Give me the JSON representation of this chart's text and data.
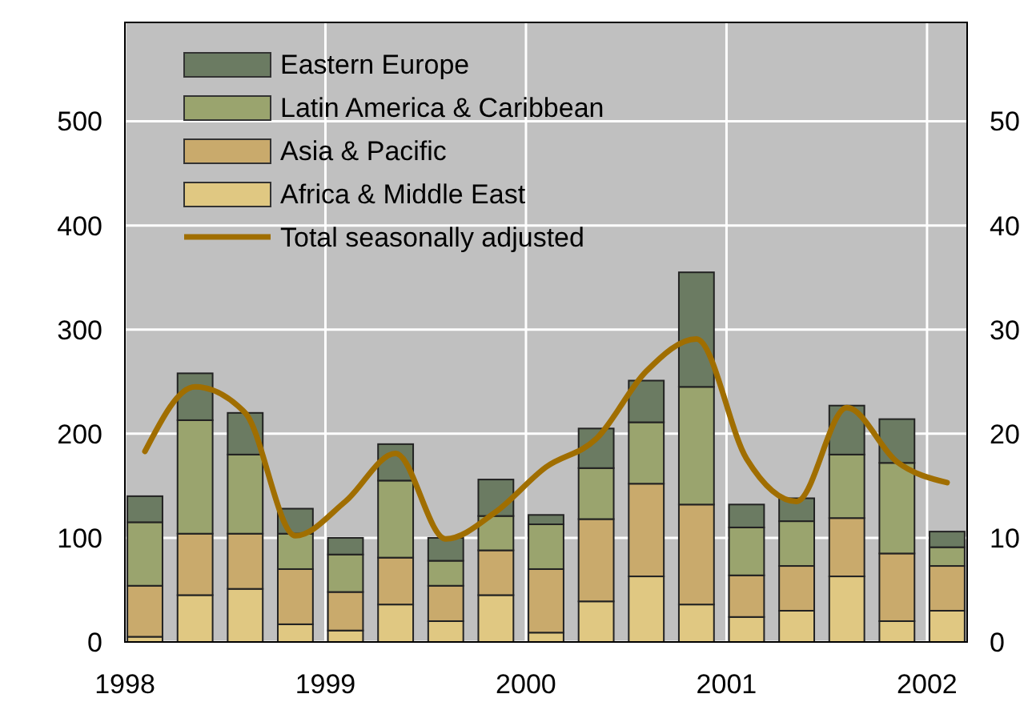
{
  "chart_data": {
    "type": "bar",
    "stacked": true,
    "x": [
      1998.1,
      1998.35,
      1998.6,
      1998.85,
      1999.1,
      1999.35,
      1999.6,
      1999.85,
      2000.1,
      2000.35,
      2000.6,
      2000.85,
      2001.1,
      2001.35,
      2001.6,
      2001.85,
      2002.1
    ],
    "series": [
      {
        "name": "Africa & Middle East",
        "color": "#e0c882",
        "values": [
          5,
          45,
          51,
          17,
          11,
          36,
          20,
          45,
          9,
          39,
          63,
          36,
          24,
          30,
          63,
          20,
          30
        ]
      },
      {
        "name": "Asia & Pacific",
        "color": "#c9aa6c",
        "values": [
          49,
          59,
          53,
          53,
          37,
          45,
          34,
          43,
          61,
          79,
          89,
          96,
          40,
          43,
          56,
          65,
          43
        ]
      },
      {
        "name": "Latin America & Caribbean",
        "color": "#9aa46e",
        "values": [
          61,
          109,
          76,
          34,
          36,
          74,
          24,
          33,
          43,
          49,
          59,
          113,
          46,
          43,
          61,
          87,
          18
        ]
      },
      {
        "name": "Eastern Europe",
        "color": "#6b7b62",
        "values": [
          25,
          45,
          40,
          24,
          16,
          35,
          22,
          35,
          9,
          38,
          40,
          110,
          22,
          22,
          47,
          42,
          15
        ]
      },
      {
        "name": "Total seasonally adjusted",
        "type": "line",
        "axis": "y2",
        "color": "#a06e00",
        "values": [
          18.3,
          24.5,
          22,
          10.2,
          13.5,
          18.1,
          9.9,
          12.5,
          16.8,
          19.5,
          26,
          29.1,
          17.6,
          13.5,
          22.5,
          17.3,
          15.3
        ]
      }
    ],
    "xlim": [
      1998,
      2002.2
    ],
    "xticks": [
      1998,
      1999,
      2000,
      2001,
      2002
    ],
    "ylim": [
      0,
      595
    ],
    "yticks": [
      0,
      100,
      200,
      300,
      400,
      500
    ],
    "y2lim": [
      0,
      59.5
    ],
    "y2ticks": [
      0,
      10,
      20,
      30,
      40,
      50
    ],
    "grid": true,
    "legend": "top left",
    "line_style": "solid",
    "marker": "none"
  }
}
